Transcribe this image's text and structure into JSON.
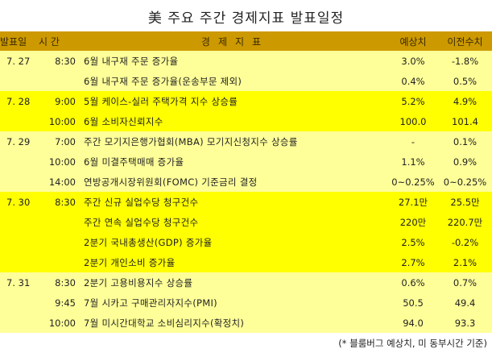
{
  "title": "美 주요 주간 경제지표 발표일정",
  "header": {
    "date": "발표일",
    "time": "시 간",
    "indicator": "경제지표",
    "forecast": "예상치",
    "previous": "이전수치"
  },
  "colors": {
    "header_bg": "#CC9900",
    "light_group_bg": "#FFFF99",
    "bright_group_bg": "#FFFF00"
  },
  "rows": [
    {
      "date": "7. 27",
      "time": "8:30",
      "indicator": "6월 내구재 주문 증가율",
      "forecast": "3.0%",
      "previous": "-1.8%"
    },
    {
      "date": "",
      "time": "",
      "indicator": "6월 내구재 주문 증가율(운송부문 제외)",
      "forecast": "0.4%",
      "previous": "0.5%"
    },
    {
      "date": "7. 28",
      "time": "9:00",
      "indicator": "5월 케이스-실러 주택가격 지수 상승률",
      "forecast": "5.2%",
      "previous": "4.9%"
    },
    {
      "date": "",
      "time": "10:00",
      "indicator": "6월 소비자신뢰지수",
      "forecast": "100.0",
      "previous": "101.4"
    },
    {
      "date": "7. 29",
      "time": "7:00",
      "indicator": "주간 모기지은행가협회(MBA) 모기지신청지수 상승률",
      "forecast": "-",
      "previous": "0.1%"
    },
    {
      "date": "",
      "time": "10:00",
      "indicator": "6월 미결주택매매 증가율",
      "forecast": "1.1%",
      "previous": "0.9%"
    },
    {
      "date": "",
      "time": "14:00",
      "indicator": "연방공개시장위원회(FOMC) 기준금리 결정",
      "forecast": "0~0.25%",
      "previous": "0~0.25%"
    },
    {
      "date": "7. 30",
      "time": "8:30",
      "indicator": "주간 신규 실업수당 청구건수",
      "forecast": "27.1만",
      "previous": "25.5만"
    },
    {
      "date": "",
      "time": "",
      "indicator": "주간 연속 실업수당 청구건수",
      "forecast": "220만",
      "previous": "220.7만"
    },
    {
      "date": "",
      "time": "",
      "indicator": "2분기 국내총생산(GDP) 증가율",
      "forecast": "2.5%",
      "previous": "-0.2%"
    },
    {
      "date": "",
      "time": "",
      "indicator": "2분기 개인소비 증가율",
      "forecast": "2.7%",
      "previous": "2.1%"
    },
    {
      "date": "7. 31",
      "time": "8:30",
      "indicator": "2분기 고용비용지수 상승률",
      "forecast": "0.6%",
      "previous": "0.7%"
    },
    {
      "date": "",
      "time": "9:45",
      "indicator": "7월 시카고 구매관리자지수(PMI)",
      "forecast": "50.5",
      "previous": "49.4"
    },
    {
      "date": "",
      "time": "10:00",
      "indicator": "7월 미시간대학교 소비심리지수(확정치)",
      "forecast": "94.0",
      "previous": "93.3"
    }
  ],
  "footnote": "(* 블룸버그 예상치, 미 동부시간 기준)"
}
